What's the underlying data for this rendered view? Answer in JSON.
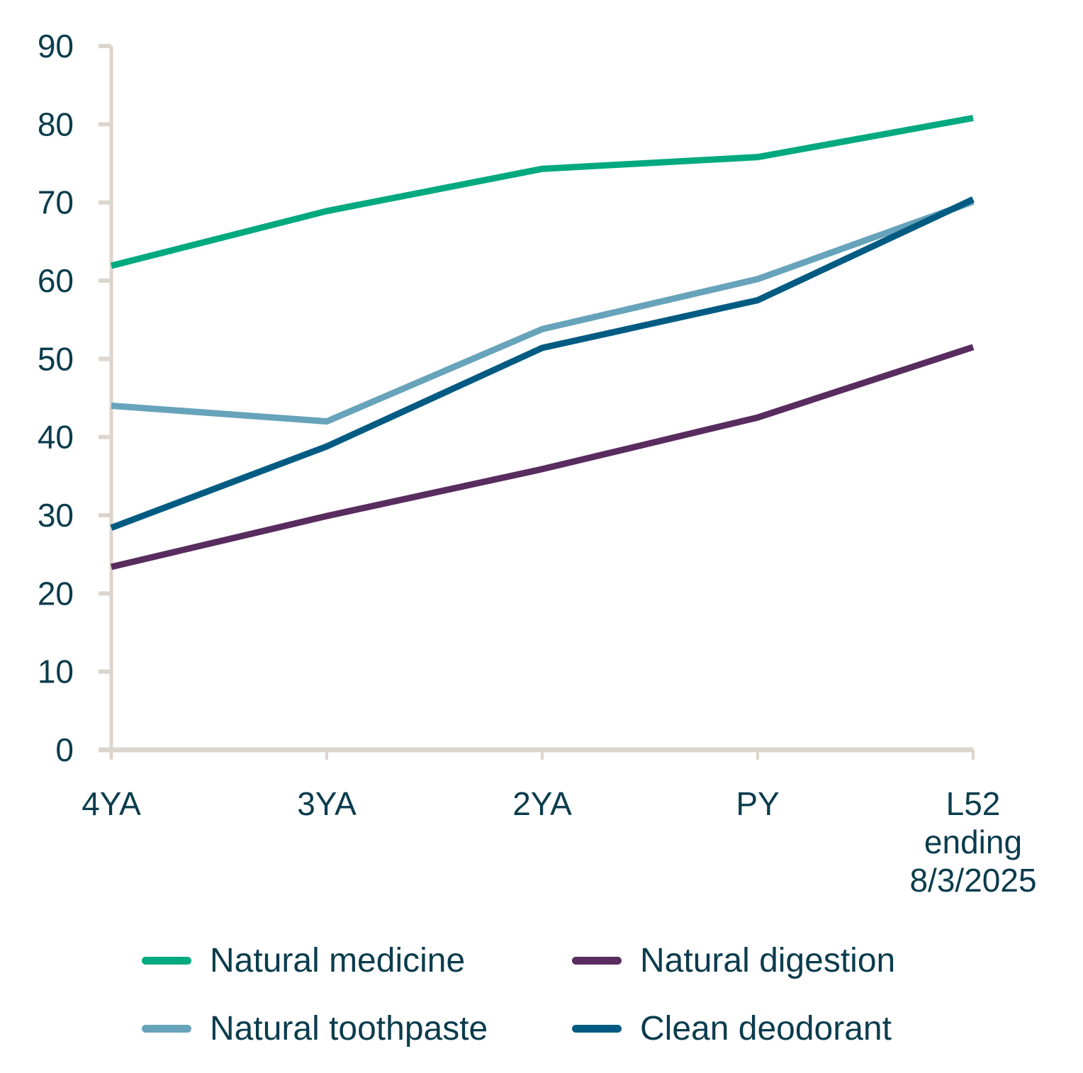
{
  "chart_data": {
    "type": "line",
    "title": "",
    "xlabel": "",
    "ylabel": "",
    "categories": [
      "4YA",
      "3YA",
      "2YA",
      "PY",
      "L52 ending 8/3/2025"
    ],
    "category_lines": [
      [
        "4YA"
      ],
      [
        "3YA"
      ],
      [
        "2YA"
      ],
      [
        "PY"
      ],
      [
        "L52",
        "ending",
        "8/3/2025"
      ]
    ],
    "ylim": [
      0,
      90
    ],
    "yticks": [
      0,
      10,
      20,
      30,
      40,
      50,
      60,
      70,
      80,
      90
    ],
    "grid": false,
    "legend_position": "bottom",
    "series": [
      {
        "name": "Natural medicine",
        "color": "#00a97f",
        "values": [
          61.9,
          68.9,
          74.3,
          75.8,
          80.8
        ]
      },
      {
        "name": "Natural digestion",
        "color": "#582c5e",
        "values": [
          23.4,
          29.9,
          35.9,
          42.5,
          51.5
        ]
      },
      {
        "name": "Natural toothpaste",
        "color": "#67a3ba",
        "values": [
          44.0,
          42.0,
          53.8,
          60.2,
          70.1
        ]
      },
      {
        "name": "Clean deodorant",
        "color": "#005b82",
        "values": [
          28.4,
          38.8,
          51.4,
          57.5,
          70.4
        ]
      }
    ],
    "axis_color": "#dcd5cd",
    "text_color": "#0b3c4d"
  }
}
